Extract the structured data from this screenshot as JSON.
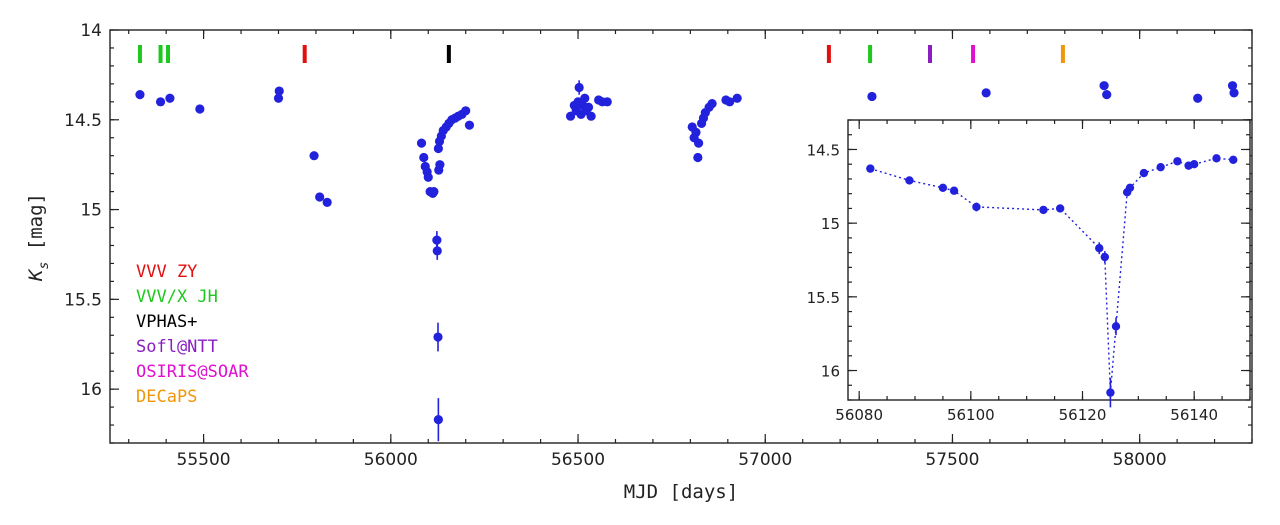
{
  "chart_data": [
    {
      "type": "scatter",
      "xlabel": "MJD [days]",
      "ylabel_main": "K",
      "ylabel_sub": "s",
      "ylabel_tail": " [mag]",
      "xlim": [
        55250,
        58300
      ],
      "ylim": [
        14,
        16.3
      ],
      "y_inverted": true,
      "x_ticks": [
        55500,
        56000,
        56500,
        57000,
        57500,
        58000
      ],
      "y_ticks": [
        14,
        14.5,
        15,
        15.5,
        16
      ],
      "point_color": "#2222dd",
      "points": [
        {
          "x": 55330,
          "y": 14.36
        },
        {
          "x": 55385,
          "y": 14.4
        },
        {
          "x": 55410,
          "y": 14.38
        },
        {
          "x": 55490,
          "y": 14.44
        },
        {
          "x": 55700,
          "y": 14.38
        },
        {
          "x": 55702,
          "y": 14.34
        },
        {
          "x": 55795,
          "y": 14.7
        },
        {
          "x": 55810,
          "y": 14.93
        },
        {
          "x": 55830,
          "y": 14.96
        },
        {
          "x": 56082,
          "y": 14.63
        },
        {
          "x": 56088,
          "y": 14.71
        },
        {
          "x": 56092,
          "y": 14.76
        },
        {
          "x": 56097,
          "y": 14.79
        },
        {
          "x": 56100,
          "y": 14.82
        },
        {
          "x": 56105,
          "y": 14.9
        },
        {
          "x": 56112,
          "y": 14.91
        },
        {
          "x": 56115,
          "y": 14.9
        },
        {
          "x": 56123,
          "y": 15.17,
          "err": 0.05
        },
        {
          "x": 56124,
          "y": 15.23,
          "err": 0.05
        },
        {
          "x": 56126,
          "y": 15.71,
          "err": 0.08
        },
        {
          "x": 56127,
          "y": 16.17,
          "err": 0.12
        },
        {
          "x": 56128,
          "y": 14.78
        },
        {
          "x": 56131,
          "y": 14.75
        },
        {
          "x": 56127,
          "y": 14.66
        },
        {
          "x": 56130,
          "y": 14.62
        },
        {
          "x": 56135,
          "y": 14.59
        },
        {
          "x": 56140,
          "y": 14.56
        },
        {
          "x": 56148,
          "y": 14.54
        },
        {
          "x": 56155,
          "y": 14.52
        },
        {
          "x": 56163,
          "y": 14.5
        },
        {
          "x": 56172,
          "y": 14.49
        },
        {
          "x": 56180,
          "y": 14.48
        },
        {
          "x": 56190,
          "y": 14.47
        },
        {
          "x": 56200,
          "y": 14.45
        },
        {
          "x": 56210,
          "y": 14.53
        },
        {
          "x": 56480,
          "y": 14.48
        },
        {
          "x": 56490,
          "y": 14.42
        },
        {
          "x": 56495,
          "y": 14.45
        },
        {
          "x": 56500,
          "y": 14.4
        },
        {
          "x": 56503,
          "y": 14.32,
          "err": 0.04
        },
        {
          "x": 56508,
          "y": 14.47
        },
        {
          "x": 56512,
          "y": 14.42
        },
        {
          "x": 56518,
          "y": 14.38
        },
        {
          "x": 56522,
          "y": 14.45
        },
        {
          "x": 56528,
          "y": 14.43
        },
        {
          "x": 56535,
          "y": 14.48
        },
        {
          "x": 56555,
          "y": 14.39
        },
        {
          "x": 56565,
          "y": 14.4
        },
        {
          "x": 56578,
          "y": 14.4
        },
        {
          "x": 56805,
          "y": 14.54
        },
        {
          "x": 56810,
          "y": 14.6
        },
        {
          "x": 56815,
          "y": 14.57
        },
        {
          "x": 56820,
          "y": 14.71
        },
        {
          "x": 56822,
          "y": 14.63
        },
        {
          "x": 56830,
          "y": 14.52
        },
        {
          "x": 56835,
          "y": 14.49
        },
        {
          "x": 56840,
          "y": 14.46
        },
        {
          "x": 56850,
          "y": 14.43
        },
        {
          "x": 56858,
          "y": 14.41
        },
        {
          "x": 56895,
          "y": 14.39
        },
        {
          "x": 56905,
          "y": 14.4
        },
        {
          "x": 56925,
          "y": 14.38
        },
        {
          "x": 57285,
          "y": 14.37
        },
        {
          "x": 57590,
          "y": 14.35
        },
        {
          "x": 57905,
          "y": 14.31
        },
        {
          "x": 57912,
          "y": 14.36
        },
        {
          "x": 58155,
          "y": 14.38
        },
        {
          "x": 58248,
          "y": 14.31
        },
        {
          "x": 58252,
          "y": 14.35
        }
      ],
      "survey_marks": [
        {
          "x": 55330,
          "color": "#1ec81e"
        },
        {
          "x": 55385,
          "color": "#1ec81e"
        },
        {
          "x": 55405,
          "color": "#1ec81e"
        },
        {
          "x": 55770,
          "color": "#e01010"
        },
        {
          "x": 56155,
          "color": "#000000"
        },
        {
          "x": 57170,
          "color": "#e01010"
        },
        {
          "x": 57280,
          "color": "#1ec81e"
        },
        {
          "x": 57440,
          "color": "#8a1ec0"
        },
        {
          "x": 57555,
          "color": "#e010d0"
        },
        {
          "x": 57795,
          "color": "#f0960a"
        }
      ],
      "legend": [
        {
          "label": "VVV ZY",
          "color": "#e01010"
        },
        {
          "label": "VVV/X JH",
          "color": "#1ec81e"
        },
        {
          "label": "VPHAS+",
          "color": "#000000"
        },
        {
          "label": "Sofl@NTT",
          "color": "#8a1ec0"
        },
        {
          "label": "OSIRIS@SOAR",
          "color": "#e010d0"
        },
        {
          "label": "DECaPS",
          "color": "#f0960a"
        }
      ],
      "legend_position": "lower-left"
    },
    {
      "type": "line",
      "name": "inset",
      "xlim": [
        56078,
        56150
      ],
      "ylim": [
        14.3,
        16.2
      ],
      "y_inverted": true,
      "x_ticks": [
        56080,
        56100,
        56120,
        56140
      ],
      "y_ticks": [
        14.5,
        15,
        15.5,
        16
      ],
      "line_style": "dotted",
      "point_color": "#2222dd",
      "points": [
        {
          "x": 56082,
          "y": 14.63
        },
        {
          "x": 56089,
          "y": 14.71
        },
        {
          "x": 56095,
          "y": 14.76
        },
        {
          "x": 56097,
          "y": 14.78
        },
        {
          "x": 56101,
          "y": 14.89,
          "err": 0.03
        },
        {
          "x": 56113,
          "y": 14.91
        },
        {
          "x": 56116,
          "y": 14.9
        },
        {
          "x": 56123,
          "y": 15.17,
          "err": 0.04
        },
        {
          "x": 56124,
          "y": 15.23,
          "err": 0.04
        },
        {
          "x": 56125,
          "y": 16.15,
          "err": 0.1
        },
        {
          "x": 56126,
          "y": 15.7,
          "err": 0.06
        },
        {
          "x": 56128,
          "y": 14.79
        },
        {
          "x": 56128.5,
          "y": 14.76
        },
        {
          "x": 56131,
          "y": 14.66
        },
        {
          "x": 56134,
          "y": 14.62
        },
        {
          "x": 56137,
          "y": 14.58
        },
        {
          "x": 56139,
          "y": 14.61
        },
        {
          "x": 56140,
          "y": 14.6
        },
        {
          "x": 56144,
          "y": 14.56
        },
        {
          "x": 56147,
          "y": 14.57
        }
      ]
    }
  ]
}
